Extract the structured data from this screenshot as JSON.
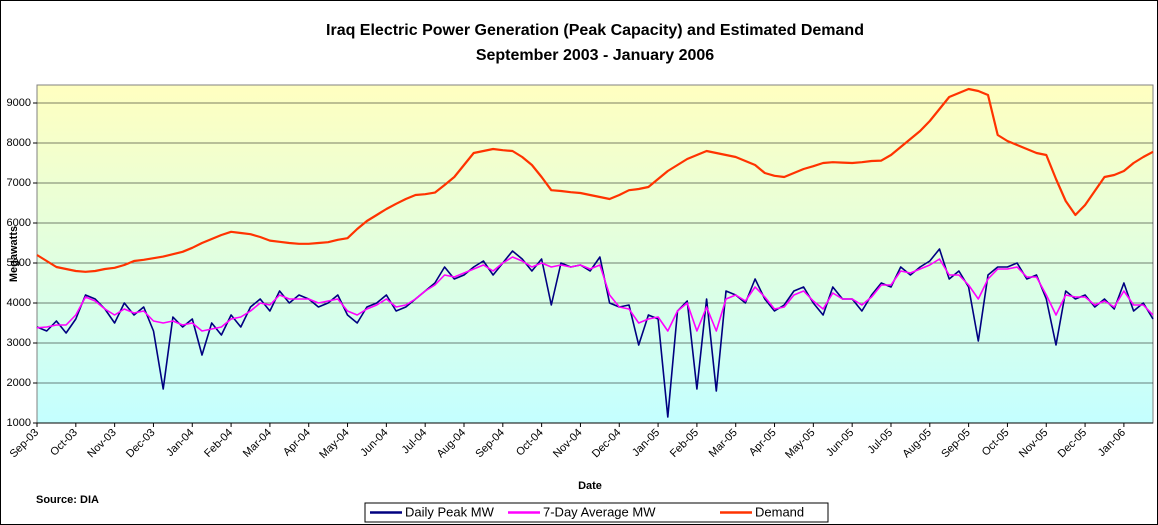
{
  "chart_data": {
    "type": "line",
    "title": "Iraq Electric Power Generation (Peak Capacity) and Estimated Demand",
    "subtitle": "September 2003 - January 2006",
    "x_label": "Date",
    "y_label": "Megawatts",
    "annotation": "Source: DIA",
    "categories": [
      "Sep-03",
      null,
      null,
      null,
      "Oct-03",
      null,
      null,
      null,
      "Nov-03",
      null,
      null,
      null,
      "Dec-03",
      null,
      null,
      null,
      "Jan-04",
      null,
      null,
      null,
      "Feb-04",
      null,
      null,
      null,
      "Mar-04",
      null,
      null,
      null,
      "Apr-04",
      null,
      null,
      null,
      "May-04",
      null,
      null,
      null,
      "Jun-04",
      null,
      null,
      null,
      "Jul-04",
      null,
      null,
      null,
      "Aug-04",
      null,
      null,
      null,
      "Sep-04",
      null,
      null,
      null,
      "Oct-04",
      null,
      null,
      null,
      "Nov-04",
      null,
      null,
      null,
      "Dec-04",
      null,
      null,
      null,
      "Jan-05",
      null,
      null,
      null,
      "Feb-05",
      null,
      null,
      null,
      "Mar-05",
      null,
      null,
      null,
      "Apr-05",
      null,
      null,
      null,
      "May-05",
      null,
      null,
      null,
      "Jun-05",
      null,
      null,
      null,
      "Jul-05",
      null,
      null,
      null,
      "Aug-05",
      null,
      null,
      null,
      "Sep-05",
      null,
      null,
      null,
      "Oct-05",
      null,
      null,
      null,
      "Nov-05",
      null,
      null,
      null,
      "Dec-05",
      null,
      null,
      null,
      "Jan-06",
      null,
      null,
      null
    ],
    "series": [
      {
        "name": "Daily Peak MW",
        "color": "#000080",
        "values": [
          3400,
          3300,
          3550,
          3250,
          3600,
          4200,
          4100,
          3850,
          3500,
          4000,
          3700,
          3900,
          3300,
          1850,
          3650,
          3400,
          3600,
          2700,
          3500,
          3200,
          3700,
          3400,
          3900,
          4100,
          3800,
          4300,
          4000,
          4200,
          4100,
          3900,
          4000,
          4200,
          3700,
          3500,
          3900,
          4000,
          4200,
          3800,
          3900,
          4100,
          4300,
          4500,
          4900,
          4600,
          4700,
          4900,
          5050,
          4700,
          5000,
          5300,
          5100,
          4800,
          5100,
          3950,
          5000,
          4900,
          4950,
          4800,
          5150,
          4000,
          3900,
          3950,
          2950,
          3700,
          3600,
          1150,
          3800,
          4050,
          1850,
          4100,
          1800,
          4300,
          4200,
          4000,
          4600,
          4100,
          3800,
          3950,
          4300,
          4400,
          4000,
          3700,
          4400,
          4100,
          4100,
          3800,
          4200,
          4500,
          4400,
          4900,
          4700,
          4900,
          5050,
          5350,
          4600,
          4800,
          4400,
          3050,
          4700,
          4900,
          4900,
          5000,
          4600,
          4700,
          4100,
          2950,
          4300,
          4100,
          4200,
          3900,
          4100,
          3850,
          4500,
          3800,
          4000,
          3600
        ]
      },
      {
        "name": "7-Day Average MW",
        "color": "#ff00ff",
        "values": [
          3380,
          3400,
          3450,
          3450,
          3700,
          4150,
          4050,
          3850,
          3700,
          3850,
          3750,
          3800,
          3550,
          3500,
          3550,
          3450,
          3500,
          3300,
          3350,
          3400,
          3600,
          3650,
          3800,
          4000,
          3950,
          4200,
          4100,
          4100,
          4100,
          4000,
          4050,
          4100,
          3800,
          3700,
          3850,
          3950,
          4100,
          3900,
          3950,
          4100,
          4300,
          4450,
          4700,
          4650,
          4750,
          4850,
          4950,
          4800,
          5000,
          5150,
          5050,
          4900,
          5000,
          4900,
          4950,
          4900,
          4950,
          4850,
          4950,
          4200,
          3900,
          3850,
          3500,
          3600,
          3650,
          3300,
          3800,
          4000,
          3300,
          3900,
          3300,
          4100,
          4200,
          4050,
          4400,
          4150,
          3850,
          3900,
          4200,
          4300,
          4050,
          3850,
          4250,
          4100,
          4100,
          3950,
          4150,
          4450,
          4450,
          4800,
          4750,
          4850,
          4950,
          5100,
          4700,
          4700,
          4450,
          4100,
          4600,
          4850,
          4850,
          4900,
          4650,
          4650,
          4200,
          3700,
          4200,
          4150,
          4150,
          3950,
          4050,
          3900,
          4300,
          3950,
          3950,
          3700
        ]
      },
      {
        "name": "Demand",
        "color": "#ff3300",
        "values": [
          5200,
          5050,
          4900,
          4850,
          4800,
          4780,
          4800,
          4850,
          4880,
          4950,
          5050,
          5080,
          5120,
          5160,
          5220,
          5280,
          5380,
          5500,
          5600,
          5700,
          5780,
          5750,
          5720,
          5650,
          5560,
          5530,
          5500,
          5480,
          5480,
          5500,
          5520,
          5580,
          5620,
          5850,
          6050,
          6200,
          6350,
          6480,
          6600,
          6700,
          6720,
          6760,
          6950,
          7150,
          7450,
          7750,
          7800,
          7850,
          7820,
          7800,
          7650,
          7450,
          7150,
          6820,
          6800,
          6770,
          6750,
          6700,
          6650,
          6600,
          6700,
          6820,
          6850,
          6900,
          7100,
          7300,
          7450,
          7600,
          7700,
          7800,
          7750,
          7700,
          7650,
          7550,
          7450,
          7250,
          7180,
          7150,
          7250,
          7350,
          7420,
          7500,
          7520,
          7510,
          7500,
          7520,
          7550,
          7560,
          7700,
          7900,
          8100,
          8300,
          8550,
          8850,
          9150,
          9250,
          9350,
          9300,
          9200,
          8200,
          8050,
          7950,
          7850,
          7750,
          7700,
          7100,
          6550,
          6200,
          6450,
          6800,
          7150,
          7200,
          7300,
          7500,
          7650,
          7780
        ]
      }
    ],
    "ylim": [
      1000,
      9450
    ],
    "yticks": [
      1000,
      2000,
      3000,
      4000,
      5000,
      6000,
      7000,
      8000,
      9000
    ],
    "grid": true,
    "legend": "bottom"
  }
}
